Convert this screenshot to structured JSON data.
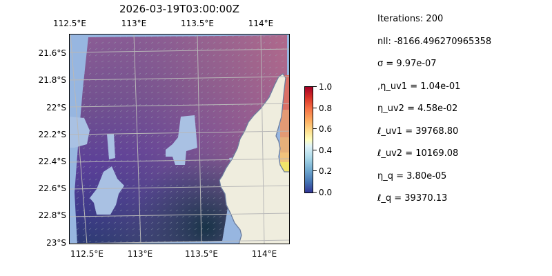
{
  "title": "2026-03-19T03:00:00Z",
  "map": {
    "lon_ticks": [
      "112.5°E",
      "113°E",
      "113.5°E",
      "114°E"
    ],
    "lat_ticks": [
      "21.6°S",
      "21.8°S",
      "22°S",
      "22.2°S",
      "22.4°S",
      "22.6°S",
      "22.8°S",
      "23°S"
    ],
    "extent": {
      "lon_min": 112.5,
      "lon_max": 114.2,
      "lat_min": -23.0,
      "lat_max": -21.45
    },
    "colors": {
      "ocean": "#97b6e0",
      "land": "#efedde",
      "coastline": "#6b7d9e",
      "gridline": "#b8b8b8"
    }
  },
  "colorbar": {
    "ticks": [
      "0.0",
      "0.2",
      "0.4",
      "0.6",
      "0.8",
      "1.0"
    ],
    "colormap": "RdYlBu_r"
  },
  "stats": [
    "Iterations: 200",
    "nll: -8166.496270965358",
    "σ = 9.97e-07",
    ",η_uv1 = 1.04e-01",
    "η_uv2 = 4.58e-02",
    "ℓ_uv1 = 39768.80",
    "ℓ_uv2 = 10169.08",
    "η_q = 3.80e-05",
    "ℓ_q = 39370.13"
  ]
}
